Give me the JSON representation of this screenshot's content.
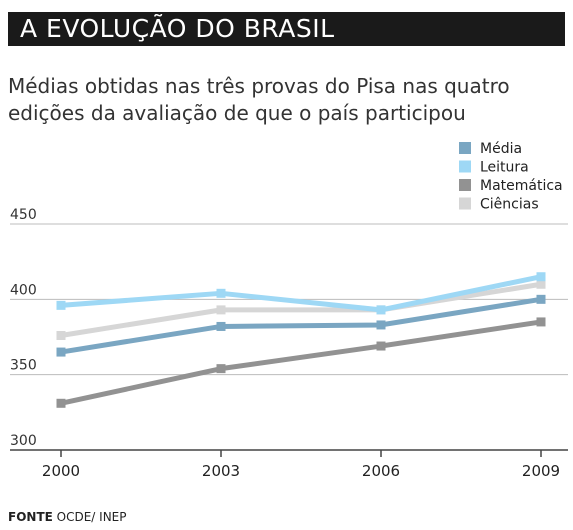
{
  "header": {
    "title": "A EVOLUÇÃO DO BRASIL"
  },
  "subtitle": "Médias obtidas nas três provas do Pisa nas quatro edições da avaliação de que o país participou",
  "source": {
    "label": "FONTE",
    "text": "OCDE/ INEP"
  },
  "chart_data": {
    "type": "line",
    "categories": [
      "2000",
      "2003",
      "2006",
      "2009"
    ],
    "ylim": [
      300,
      450
    ],
    "yticks": [
      300,
      350,
      400,
      450
    ],
    "grid": true,
    "legend_position": "top-right",
    "series": [
      {
        "name": "Média",
        "color": "#7aa6c2",
        "values": [
          365,
          382,
          383,
          400
        ]
      },
      {
        "name": "Leitura",
        "color": "#9ed8f5",
        "values": [
          396,
          404,
          393,
          415
        ]
      },
      {
        "name": "Matemática",
        "color": "#929292",
        "values": [
          331,
          354,
          369,
          385
        ]
      },
      {
        "name": "Ciências",
        "color": "#d6d6d6",
        "values": [
          376,
          393,
          393,
          410
        ]
      }
    ]
  }
}
